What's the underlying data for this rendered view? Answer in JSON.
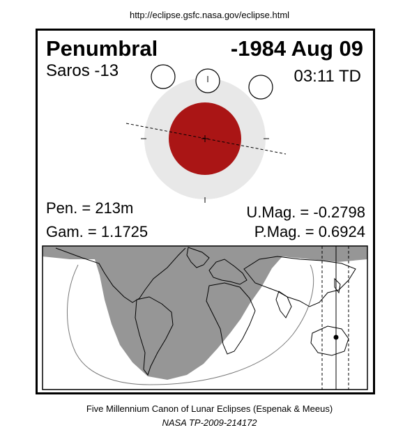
{
  "source_url": "http://eclipse.gsfc.nasa.gov/eclipse.html",
  "eclipse": {
    "type": "Penumbral",
    "date": "-1984 Aug 09",
    "saros": "Saros -13",
    "time": "03:11 TD",
    "pen_duration": "Pen. = 213m",
    "gamma": "Gam. = 1.1725",
    "umbral_magnitude": "U.Mag. = -0.2798",
    "penumbral_magnitude": "P.Mag. = 0.6924"
  },
  "colors": {
    "umbra": "#aa1515",
    "penumbra": "#e8e8e8",
    "map_shade": "#969696"
  },
  "footer": {
    "line1": "Five Millennium Canon of Lunar Eclipses (Espenak & Meeus)",
    "line2": "NASA TP-2009-214172"
  }
}
